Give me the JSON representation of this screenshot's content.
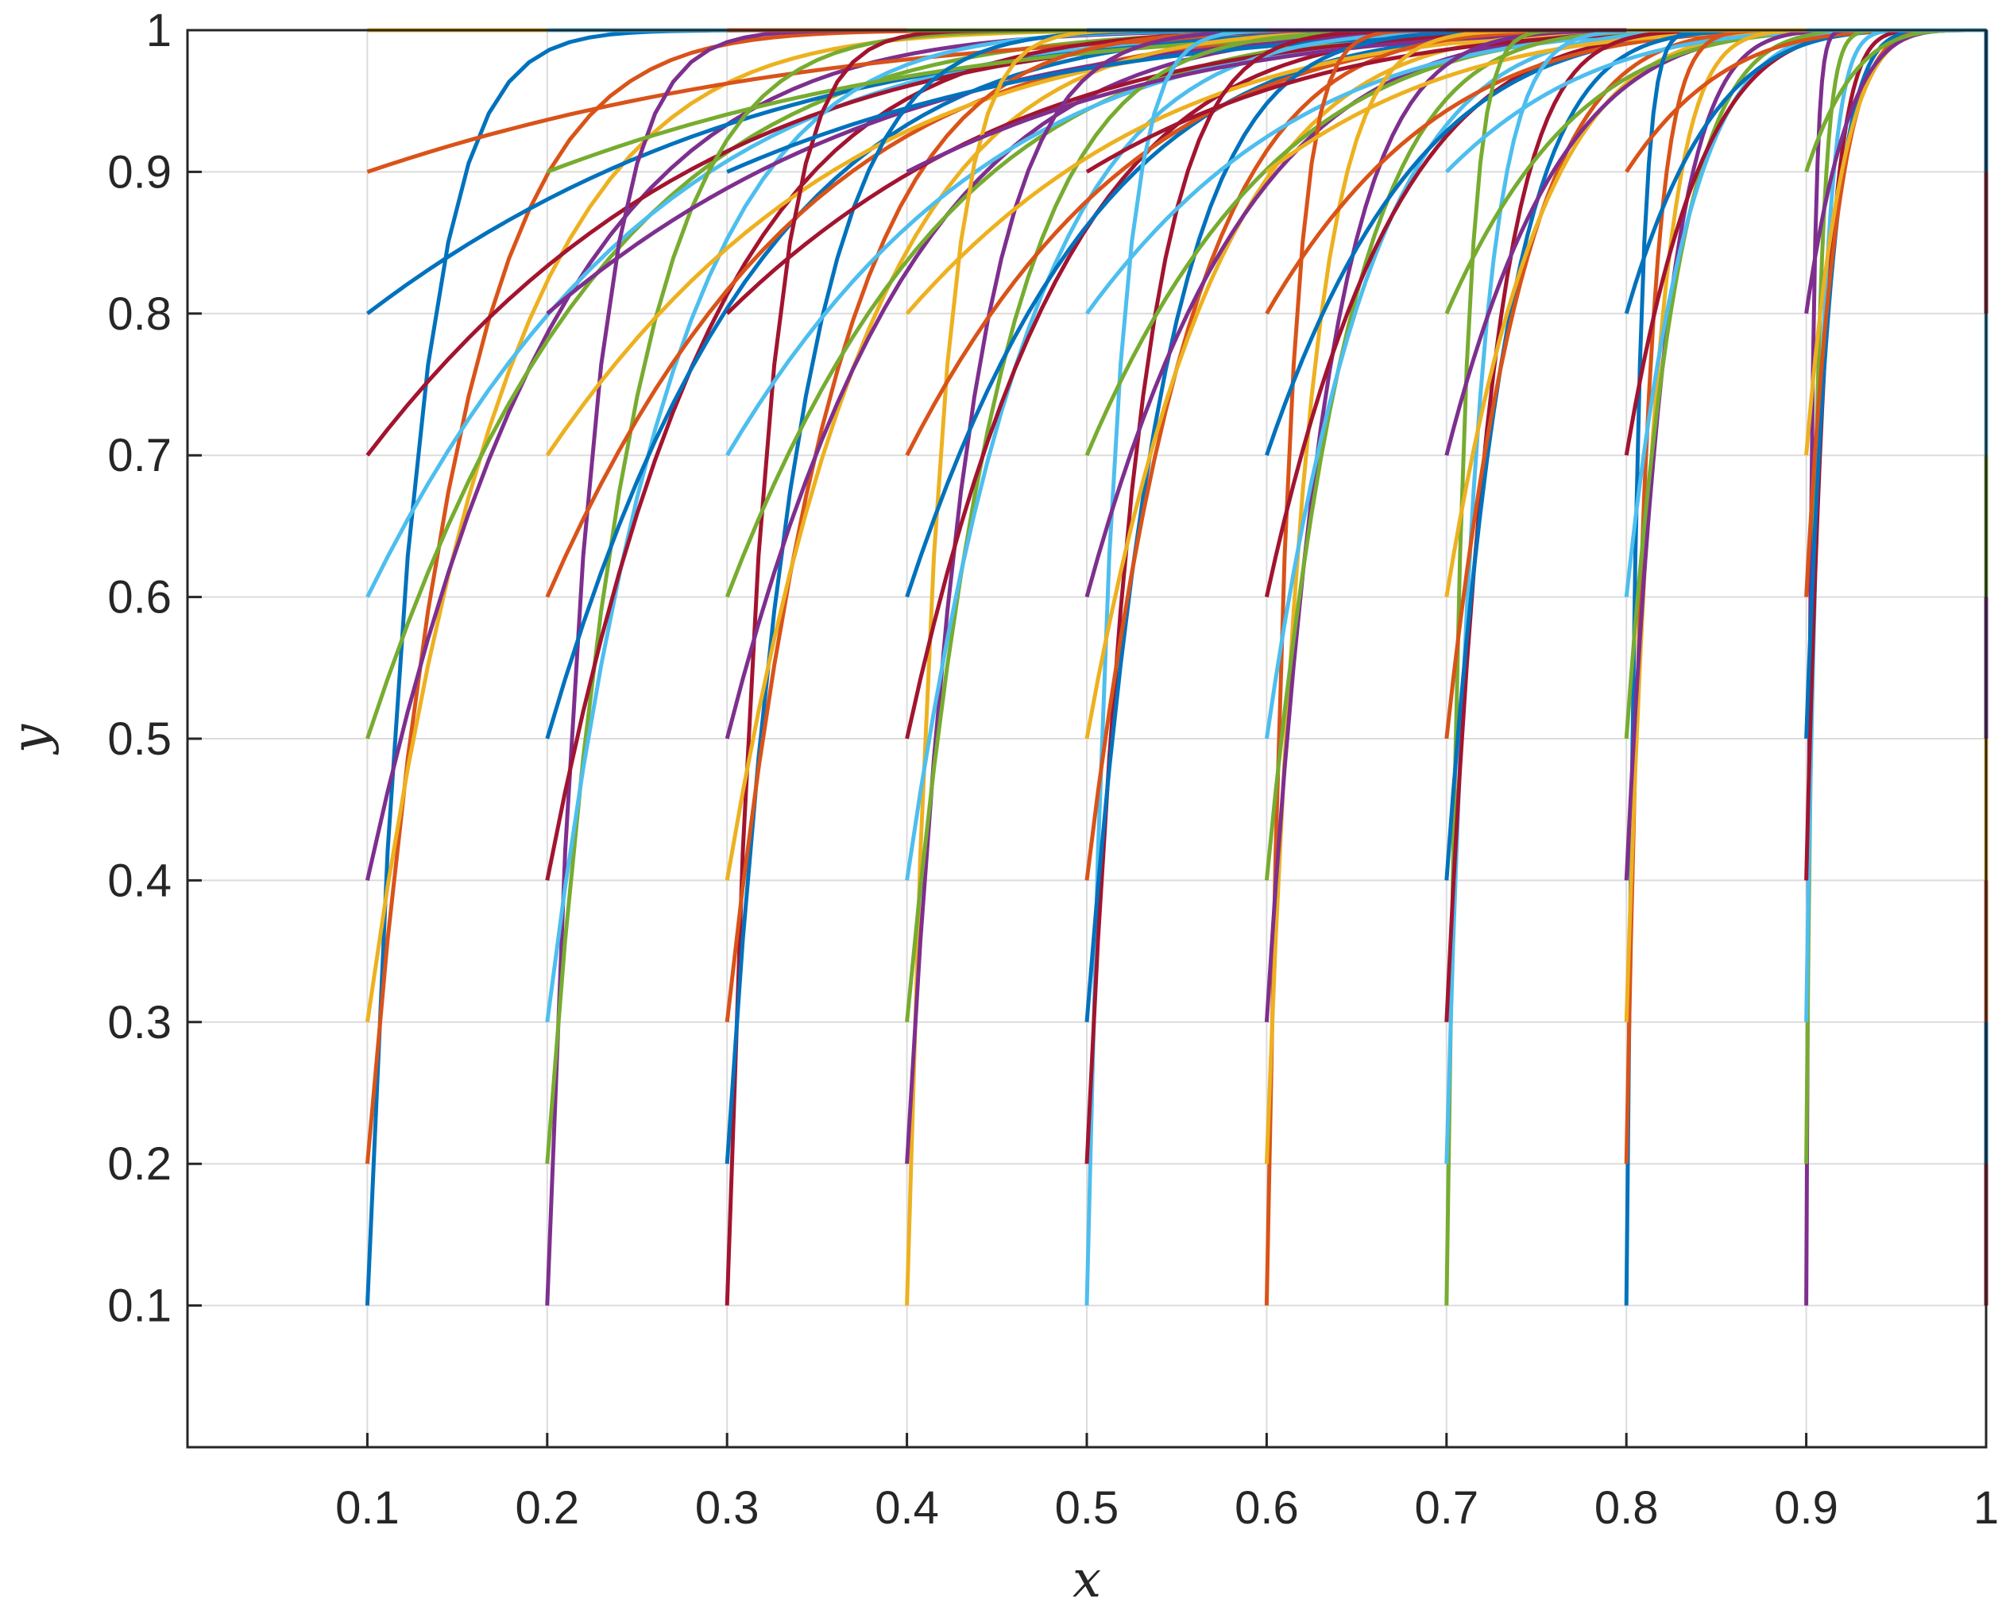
{
  "chart_data": {
    "type": "line",
    "title": "",
    "xlabel": "x",
    "ylabel": "y",
    "xlim": [
      0,
      1
    ],
    "ylim": [
      0,
      1
    ],
    "grid": true,
    "legend": "none",
    "x_tick_labels": [
      "0.1",
      "0.2",
      "0.3",
      "0.4",
      "0.5",
      "0.6",
      "0.7",
      "0.8",
      "0.9",
      "1"
    ],
    "y_tick_labels": [
      "0.1",
      "0.2",
      "0.3",
      "0.4",
      "0.5",
      "0.6",
      "0.7",
      "0.8",
      "0.9",
      "1"
    ],
    "series_family": {
      "description": "Each curve starts at (x0, y0) and rises to (1, 1)",
      "x0_values": [
        0.1,
        0.2,
        0.3,
        0.4,
        0.5,
        0.6,
        0.7,
        0.8,
        0.9,
        1.0
      ],
      "y0_values": [
        0.1,
        0.2,
        0.3,
        0.4,
        0.5,
        0.6,
        0.7,
        0.8,
        0.9,
        1.0
      ],
      "model": "y = 1 - (1 - y0) * ((1 - x) / (1 - x0))^k, k = 3.5 / y0"
    },
    "colors": [
      "#0072BD",
      "#D95319",
      "#EDB120",
      "#7E2F8E",
      "#77AC30",
      "#4DBEEE",
      "#A2142F"
    ]
  }
}
